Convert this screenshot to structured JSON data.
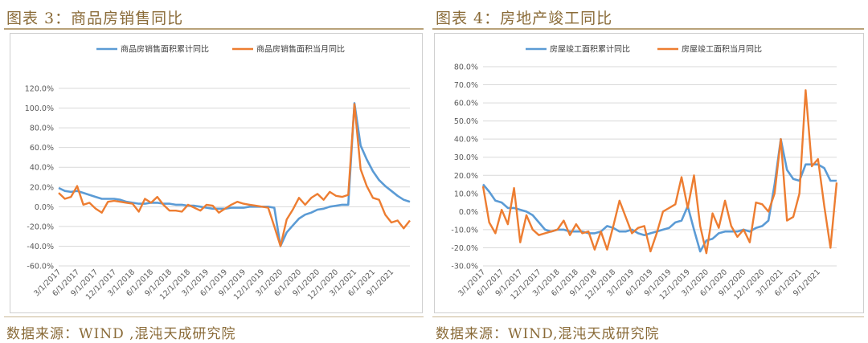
{
  "left": {
    "fig_title": "图表 3：商品房销售同比",
    "source": "数据来源：WIND ,混沌天成研究院"
  },
  "right": {
    "fig_title": "图表 4：房地产竣工同比",
    "source": "数据来源：WIND,混沌天成研究院"
  },
  "colors": {
    "blue": "#5b9bd5",
    "orange": "#ed7d31",
    "gold": "#8a6b38"
  },
  "chart_data": [
    {
      "type": "line",
      "title": "",
      "ylim": [
        -0.6,
        1.2
      ],
      "yticks": [
        "120.0%",
        "100.0%",
        "80.0%",
        "60.0%",
        "40.0%",
        "20.0%",
        "0.0%",
        "-20.0%",
        "-40.0%",
        "-60.0%"
      ],
      "xticks": [
        "3/1/2017",
        "6/1/2017",
        "9/1/2017",
        "12/1/2017",
        "3/1/2018",
        "6/1/2018",
        "9/1/2018",
        "12/1/2018",
        "3/1/2019",
        "6/1/2019",
        "9/1/2019",
        "12/1/2019",
        "3/1/2020",
        "6/1/2020",
        "9/1/2020",
        "12/1/2020",
        "3/1/2021",
        "6/1/2021",
        "9/1/2021"
      ],
      "x_start": "3/1/2017",
      "grid": true,
      "legend": "top",
      "series": [
        {
          "name": "商品房销售面积累计同比",
          "color": "blue",
          "values": [
            0.19,
            0.16,
            0.15,
            0.16,
            0.14,
            0.12,
            0.1,
            0.08,
            0.08,
            0.08,
            0.07,
            0.05,
            0.04,
            0.03,
            0.03,
            0.04,
            0.04,
            0.03,
            0.03,
            0.02,
            0.02,
            0.01,
            0.01,
            0.0,
            -0.01,
            -0.02,
            -0.02,
            -0.02,
            -0.01,
            -0.01,
            -0.01,
            0.0,
            0.0,
            0.0,
            0.0,
            -0.01,
            -0.4,
            -0.26,
            -0.19,
            -0.12,
            -0.08,
            -0.06,
            -0.03,
            -0.02,
            0.0,
            0.01,
            0.02,
            0.02,
            1.05,
            0.62,
            0.48,
            0.36,
            0.27,
            0.21,
            0.16,
            0.11,
            0.07,
            0.05
          ]
        },
        {
          "name": "商品房销售面积当月同比",
          "color": "orange",
          "values": [
            0.14,
            0.08,
            0.1,
            0.21,
            0.02,
            0.04,
            -0.02,
            -0.06,
            0.05,
            0.06,
            0.05,
            0.04,
            0.03,
            -0.05,
            0.08,
            0.04,
            0.1,
            0.02,
            -0.04,
            -0.04,
            -0.05,
            0.02,
            -0.01,
            -0.04,
            0.02,
            0.01,
            -0.06,
            -0.02,
            0.02,
            0.05,
            0.03,
            0.02,
            0.01,
            0.0,
            -0.01,
            -0.2,
            -0.4,
            -0.13,
            -0.03,
            0.09,
            0.02,
            0.09,
            0.13,
            0.07,
            0.15,
            0.11,
            0.1,
            0.12,
            1.04,
            0.38,
            0.21,
            0.09,
            0.07,
            -0.08,
            -0.16,
            -0.14,
            -0.22,
            -0.14
          ]
        }
      ]
    },
    {
      "type": "line",
      "title": "",
      "ylim": [
        -0.3,
        0.8
      ],
      "yticks": [
        "80.0%",
        "70.0%",
        "60.0%",
        "50.0%",
        "40.0%",
        "30.0%",
        "20.0%",
        "10.0%",
        "0.0%",
        "-10.0%",
        "-20.0%",
        "-30.0%"
      ],
      "xticks": [
        "3/1/2017",
        "6/1/2017",
        "9/1/2017",
        "12/1/2017",
        "3/1/2018",
        "6/1/2018",
        "9/1/2018",
        "12/1/2018",
        "3/1/2019",
        "6/1/2019",
        "9/1/2019",
        "12/1/2019",
        "3/1/2020",
        "6/1/2020",
        "9/1/2020",
        "12/1/2020",
        "3/1/2021",
        "6/1/2021",
        "9/1/2021"
      ],
      "x_start": "3/1/2017",
      "grid": true,
      "legend": "top",
      "series": [
        {
          "name": "房屋竣工面积累计同比",
          "color": "blue",
          "values": [
            0.15,
            0.11,
            0.06,
            0.05,
            0.02,
            0.02,
            0.01,
            0.0,
            -0.02,
            -0.06,
            -0.1,
            -0.11,
            -0.1,
            -0.1,
            -0.11,
            -0.11,
            -0.11,
            -0.12,
            -0.12,
            -0.11,
            -0.08,
            -0.09,
            -0.11,
            -0.11,
            -0.1,
            -0.12,
            -0.13,
            -0.12,
            -0.11,
            -0.1,
            -0.09,
            -0.06,
            -0.05,
            0.03,
            -0.1,
            -0.22,
            -0.16,
            -0.15,
            -0.12,
            -0.11,
            -0.11,
            -0.11,
            -0.1,
            -0.11,
            -0.09,
            -0.08,
            -0.05,
            0.15,
            0.4,
            0.23,
            0.18,
            0.17,
            0.26,
            0.26,
            0.26,
            0.24,
            0.17,
            0.17
          ]
        },
        {
          "name": "房屋竣工面积当月同比",
          "color": "orange",
          "values": [
            0.14,
            -0.06,
            -0.12,
            0.01,
            -0.07,
            0.13,
            -0.17,
            -0.02,
            -0.1,
            -0.13,
            -0.12,
            -0.11,
            -0.1,
            -0.05,
            -0.13,
            -0.07,
            -0.12,
            -0.11,
            -0.21,
            -0.11,
            -0.21,
            -0.08,
            0.06,
            -0.03,
            -0.12,
            -0.09,
            -0.08,
            -0.22,
            -0.12,
            0.0,
            0.02,
            0.04,
            0.19,
            0.02,
            0.2,
            -0.08,
            -0.23,
            -0.01,
            -0.09,
            0.06,
            -0.08,
            -0.14,
            -0.1,
            -0.17,
            0.05,
            0.04,
            0.0,
            0.1,
            0.4,
            -0.05,
            -0.03,
            0.1,
            0.67,
            0.25,
            0.29,
            0.03,
            -0.2,
            0.16
          ]
        }
      ]
    }
  ]
}
